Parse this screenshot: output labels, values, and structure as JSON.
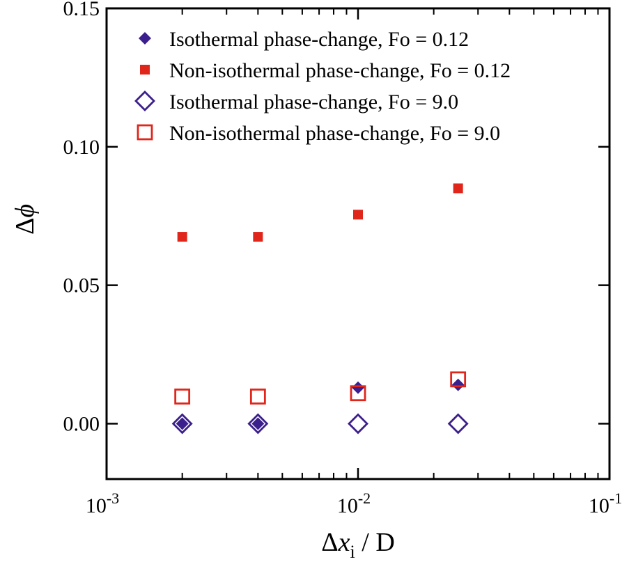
{
  "chart_data": {
    "type": "scatter",
    "xscale": "log",
    "xlim": [
      0.001,
      0.1
    ],
    "ylim": [
      -0.02,
      0.15
    ],
    "xticks": [
      {
        "value": 0.001,
        "base": "10",
        "exp": "-3"
      },
      {
        "value": 0.01,
        "base": "10",
        "exp": "-2"
      },
      {
        "value": 0.1,
        "base": "10",
        "exp": "-1"
      }
    ],
    "yticks": [
      {
        "value": 0.0,
        "label": "0.00"
      },
      {
        "value": 0.05,
        "label": "0.05"
      },
      {
        "value": 0.1,
        "label": "0.10"
      },
      {
        "value": 0.15,
        "label": "0.15"
      }
    ],
    "xlabel": {
      "delta": "Δ",
      "var": "x",
      "sub": "i",
      "rest": " / D"
    },
    "ylabel": {
      "delta": "Δ",
      "var": "ϕ"
    },
    "legend_position": "top-left",
    "series": [
      {
        "name": "Isothermal phase-change, Fo = 0.12",
        "marker": "diamond",
        "filled": true,
        "color": "#3b1f8c",
        "x": [
          0.002,
          0.004,
          0.01,
          0.025
        ],
        "y": [
          0.0,
          0.0,
          0.013,
          0.014
        ]
      },
      {
        "name": "Non-isothermal phase-change, Fo = 0.12",
        "marker": "square",
        "filled": true,
        "color": "#e0261b",
        "x": [
          0.002,
          0.004,
          0.01,
          0.025
        ],
        "y": [
          0.0675,
          0.0675,
          0.0755,
          0.085
        ]
      },
      {
        "name": "Isothermal phase-change, Fo = 9.0",
        "marker": "diamond",
        "filled": false,
        "color": "#3b1f8c",
        "x": [
          0.002,
          0.004,
          0.01,
          0.025
        ],
        "y": [
          0.0,
          0.0,
          0.0,
          0.0
        ]
      },
      {
        "name": "Non-isothermal phase-change, Fo = 9.0",
        "marker": "square",
        "filled": false,
        "color": "#e0261b",
        "x": [
          0.002,
          0.004,
          0.01,
          0.025
        ],
        "y": [
          0.0098,
          0.0098,
          0.011,
          0.016
        ]
      }
    ]
  }
}
